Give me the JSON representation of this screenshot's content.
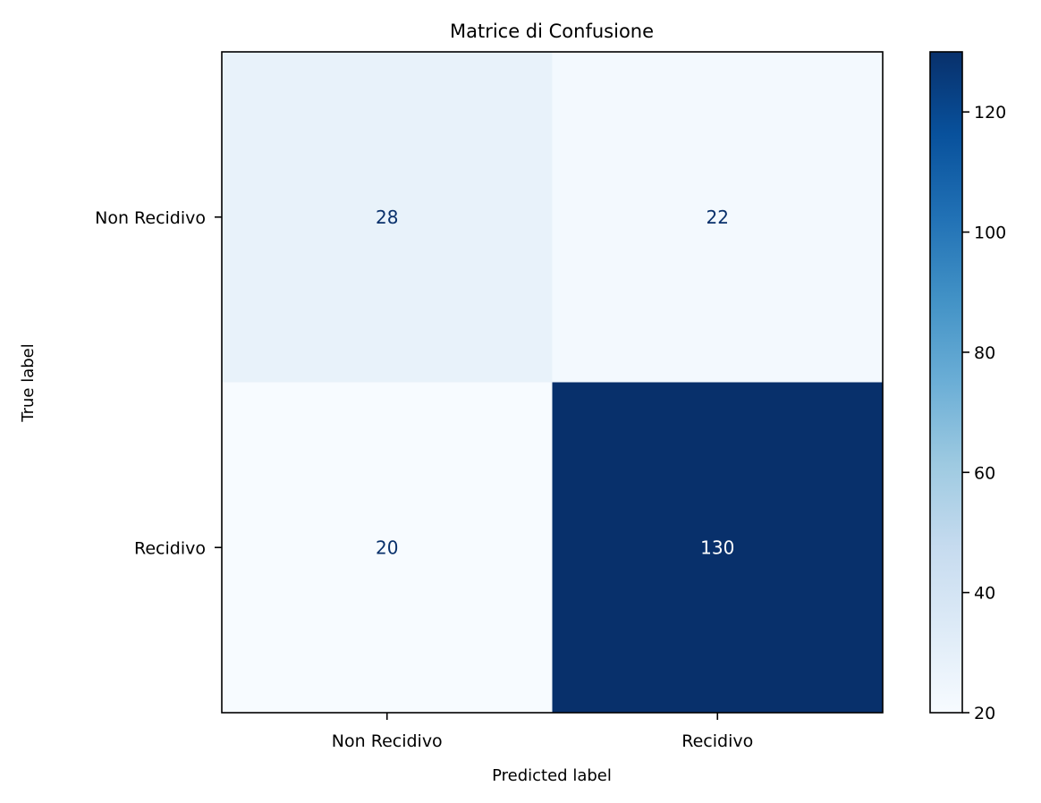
{
  "chart_data": {
    "type": "heatmap",
    "title": "Matrice di Confusione",
    "xlabel": "Predicted label",
    "ylabel": "True label",
    "x_categories": [
      "Non Recidivo",
      "Recidivo"
    ],
    "y_categories": [
      "Non Recidivo",
      "Recidivo"
    ],
    "values": [
      [
        28,
        22
      ],
      [
        20,
        130
      ]
    ],
    "colormap": "Blues",
    "colorbar": {
      "range": [
        20,
        130
      ],
      "ticks": [
        20,
        40,
        60,
        80,
        100,
        120
      ]
    },
    "text_colors": {
      "light_cell": "#08306b",
      "dark_cell": "#ffffff"
    },
    "grid": false
  }
}
